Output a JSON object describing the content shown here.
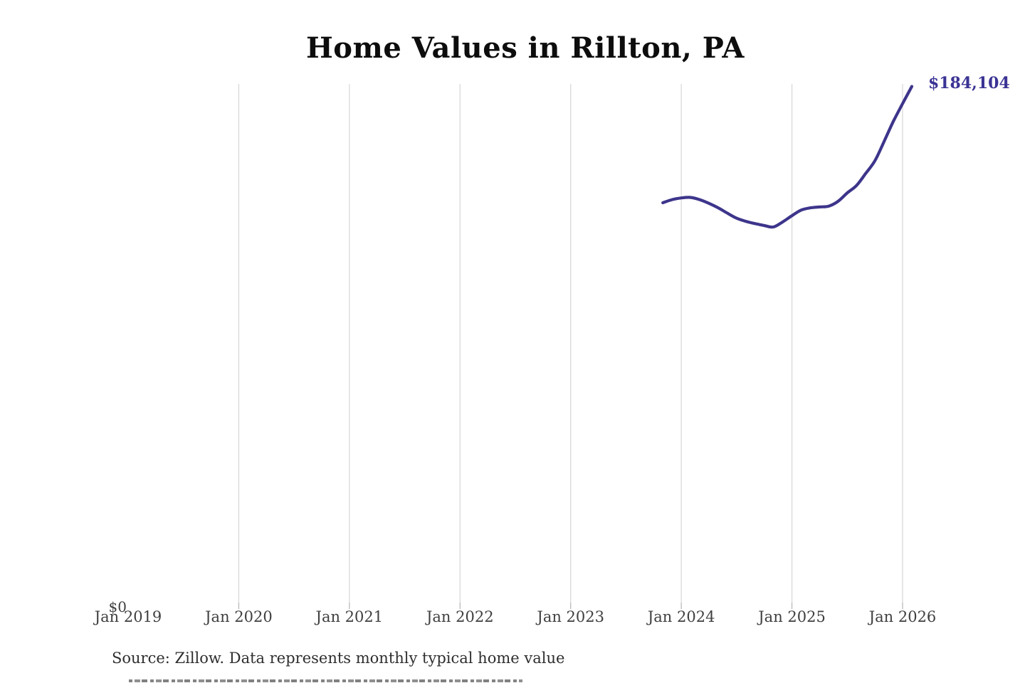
{
  "title": "Home Values in Rillton, PA",
  "y_zero_label": "$0",
  "end_label": "$184,104",
  "source_note": "Source: Zillow. Data represents monthly typical home value",
  "colors": {
    "line": "#3d358b",
    "end_label": "#3b3394",
    "grid": "#d9d9d9",
    "tick": "#b9b9b9",
    "axis_text": "#3f3f3f",
    "title_text": "#0d0d0d",
    "source_text": "#2e2e2e",
    "background": "#ffffff"
  },
  "chart_data": {
    "type": "line",
    "title": "Home Values in Rillton, PA",
    "xlabel": "",
    "ylabel": "",
    "x_tick_labels": [
      "Jan 2019",
      "Jan 2020",
      "Jan 2021",
      "Jan 2022",
      "Jan 2023",
      "Jan 2024",
      "Jan 2025",
      "Jan 2026"
    ],
    "x_axis_start": "2019-01",
    "x_axis_end": "2026-01",
    "ylim": [
      0,
      185000
    ],
    "y_tick_labels": [
      "$0"
    ],
    "grid": "vertical-only",
    "gridline_years": [
      2020,
      2021,
      2022,
      2023,
      2024,
      2025,
      2026
    ],
    "legend": "none",
    "line_smoothing": true,
    "end_value": 184104,
    "end_value_label": "$184,104",
    "series": [
      {
        "name": "typical-home-value",
        "months": [
          "2023-11",
          "2023-12",
          "2024-01",
          "2024-02",
          "2024-03",
          "2024-04",
          "2024-05",
          "2024-06",
          "2024-07",
          "2024-08",
          "2024-09",
          "2024-10",
          "2024-11",
          "2024-12",
          "2025-01",
          "2025-02",
          "2025-03",
          "2025-04",
          "2025-05",
          "2025-06",
          "2025-07",
          "2025-08",
          "2025-09",
          "2025-10",
          "2025-11",
          "2025-12",
          "2026-01",
          "2026-02"
        ],
        "values": [
          142800,
          143900,
          144500,
          144700,
          143900,
          142600,
          141000,
          139100,
          137300,
          136200,
          135400,
          134700,
          134200,
          136000,
          138200,
          140200,
          141000,
          141300,
          141600,
          143300,
          146300,
          148900,
          153200,
          157700,
          164600,
          171700,
          178000,
          184104
        ]
      }
    ]
  }
}
